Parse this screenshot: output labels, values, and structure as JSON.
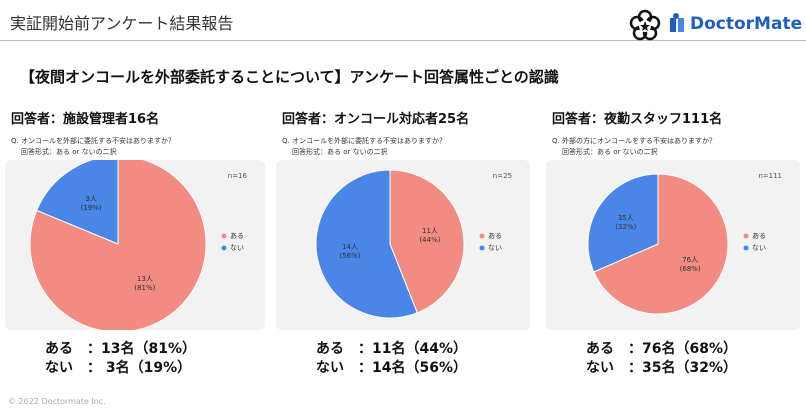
{
  "header": {
    "title": "実証開始前アンケート結果報告",
    "logo": "DoctorMate"
  },
  "heading": "【夜間オンコールを外部委託することについて】アンケート回答属性ごとの認識",
  "footer": "© 2022 Doctormate Inc.",
  "chart_data": [
    {
      "type": "pie",
      "title": "回答者：施設管理者16名",
      "question": "Q. オンコールを外部に委託する不安はありますか？",
      "format": "回答形式：ある or ないの二択",
      "note": "n=16",
      "categories": [
        "ある",
        "ない"
      ],
      "values": [
        13,
        3
      ],
      "value_labels": [
        "13人\n(81%)",
        "3人\n(19%)"
      ],
      "colors": [
        "#f28b82",
        "#4a86e8"
      ],
      "summary": [
        "ある　：13名（81%）",
        "ない　： 3名（19%）"
      ]
    },
    {
      "type": "pie",
      "title": "回答者：オンコール対応者25名",
      "question": "Q. オンコールを外部に委託する不安はありますか？",
      "format": "回答形式：ある or ないの二択",
      "note": "n=25",
      "categories": [
        "ある",
        "ない"
      ],
      "values": [
        11,
        14
      ],
      "value_labels": [
        "11人\n(44%)",
        "14人\n(56%)"
      ],
      "colors": [
        "#f28b82",
        "#4a86e8"
      ],
      "summary": [
        "ある　：11名（44%）",
        "ない　：14名（56%）"
      ]
    },
    {
      "type": "pie",
      "title": "回答者：夜勤スタッフ111名",
      "question": "Q. 外部の方にオンコールをする不安はありますか？",
      "format": "回答形式：ある or ないの二択",
      "note": "n=111",
      "categories": [
        "ある",
        "ない"
      ],
      "values": [
        76,
        35
      ],
      "value_labels": [
        "76人\n(68%)",
        "35人\n(32%)"
      ],
      "colors": [
        "#f28b82",
        "#4a86e8"
      ],
      "summary": [
        "ある　：76名（68%）",
        "ない　：35名（32%）"
      ]
    }
  ]
}
